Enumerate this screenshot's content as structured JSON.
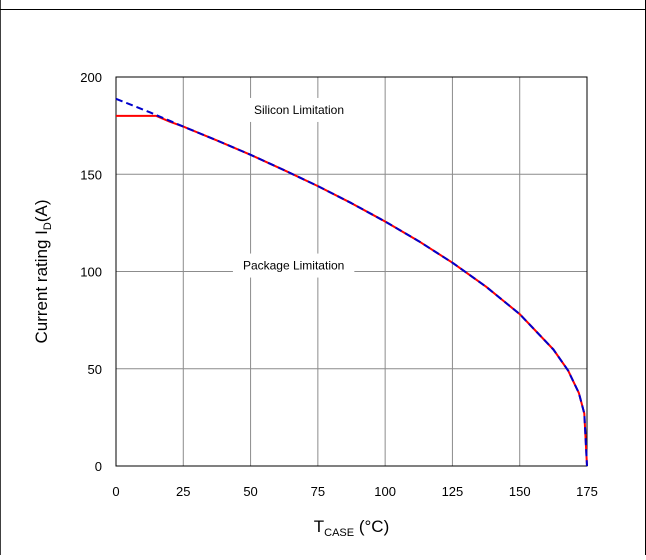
{
  "chart_data": {
    "type": "line",
    "xlabel": {
      "main": "T",
      "sub": "CASE",
      "rest": " (°C)"
    },
    "ylabel": {
      "main": "Current rating I",
      "sub": "D",
      "rest": "(A)"
    },
    "xlim": [
      0,
      175
    ],
    "ylim": [
      0,
      200
    ],
    "x_ticks": [
      0,
      25,
      50,
      75,
      100,
      125,
      150,
      175
    ],
    "y_ticks": [
      0,
      50,
      100,
      150,
      200
    ],
    "x_tick_labels": [
      "0",
      "25",
      "50",
      "75",
      "100",
      "125",
      "150",
      "175"
    ],
    "y_tick_labels": [
      "0",
      "50",
      "100",
      "150",
      "200"
    ],
    "grid": true,
    "annotations": [
      {
        "id": "silicon",
        "text": "Silicon Limitation",
        "x": 68,
        "y": 181
      },
      {
        "id": "package",
        "text": "Package Limitation",
        "x": 66,
        "y": 101
      }
    ],
    "series": [
      {
        "id": "package",
        "color": "#ff0000",
        "style": "solid",
        "x": [
          0,
          15,
          20,
          25,
          37.5,
          50,
          62.5,
          75,
          87.5,
          100,
          112.5,
          125,
          137.5,
          150,
          162.5,
          168,
          172,
          174,
          175
        ],
        "y": [
          180,
          180,
          177,
          174.5,
          167.4,
          160,
          152.1,
          143.9,
          135.1,
          125.7,
          115.6,
          104.5,
          92.2,
          78.1,
          59.9,
          49,
          37.5,
          27,
          0
        ]
      },
      {
        "id": "silicon",
        "color": "#0000cc",
        "style": "dashed",
        "x": [
          0,
          12.5,
          25,
          37.5,
          50,
          62.5,
          75,
          87.5,
          100,
          112.5,
          125,
          137.5,
          150,
          162.5,
          168,
          172,
          174,
          175
        ],
        "y": [
          188.8,
          181.9,
          174.5,
          167.4,
          160,
          152.1,
          143.9,
          135.1,
          125.7,
          115.6,
          104.5,
          92.2,
          78.1,
          59.9,
          49,
          37.5,
          27,
          0
        ]
      }
    ]
  }
}
